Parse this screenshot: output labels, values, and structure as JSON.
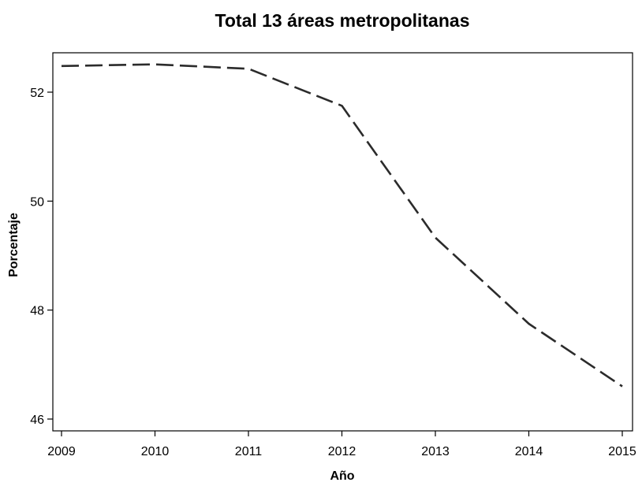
{
  "chart_data": {
    "type": "line",
    "title": "Total 13 áreas metropolitanas",
    "xlabel": "Año",
    "ylabel": "Porcentaje",
    "x": [
      2009,
      2010,
      2011,
      2012,
      2013,
      2014,
      2015
    ],
    "x_tick_labels": [
      "2009",
      "2010",
      "2011",
      "2012",
      "2013",
      "2014",
      "2015"
    ],
    "y_ticks": [
      46,
      48,
      50,
      52
    ],
    "y_tick_labels": [
      "46",
      "48",
      "50",
      "52"
    ],
    "xlim": [
      2009,
      2015
    ],
    "ylim": [
      45.8,
      52.7
    ],
    "grid": false,
    "series": [
      {
        "values": [
          52.48,
          52.51,
          52.43,
          51.75,
          49.33,
          47.75,
          46.6
        ],
        "color": "#2b2b2b",
        "line_style": "dashed"
      }
    ]
  }
}
